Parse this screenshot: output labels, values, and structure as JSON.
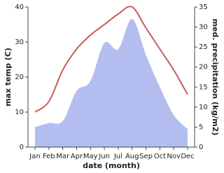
{
  "chart_data": {
    "type": "line-area",
    "x_label": "date (month)",
    "y_label": "max temp (C)",
    "y2_label": "med. precipitation (kg/m2)",
    "categories": [
      "Jan",
      "Feb",
      "Mar",
      "Apr",
      "May",
      "Jun",
      "Jul",
      "Aug",
      "Sep",
      "Oct",
      "Nov",
      "Dec"
    ],
    "series": [
      {
        "name": "max temp",
        "color": "#c75b5b",
        "kind": "line",
        "values": [
          10,
          13,
          22,
          28,
          32,
          35,
          38,
          40,
          34,
          28,
          22,
          15
        ]
      },
      {
        "name": "precipitation",
        "color": "#b3bdf0",
        "kind": "area",
        "axis": "y2",
        "values": [
          5,
          6,
          6.5,
          14,
          16.5,
          26,
          24.5,
          32,
          23,
          15,
          8,
          4.5
        ]
      }
    ],
    "ylim": [
      0,
      40
    ],
    "yticks": [
      0,
      10,
      20,
      30,
      40
    ],
    "y2lim": [
      0,
      35
    ],
    "y2ticks": [
      0,
      5,
      10,
      15,
      20,
      25,
      30,
      35
    ]
  }
}
